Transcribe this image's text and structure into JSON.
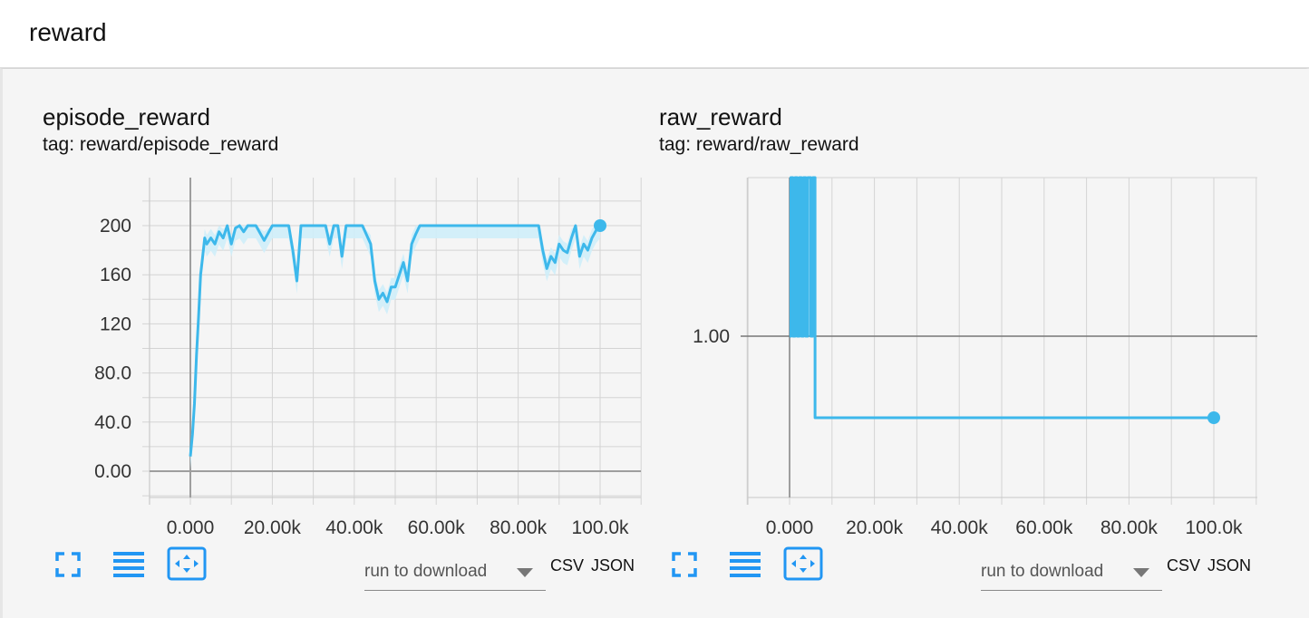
{
  "header": {
    "title": "reward"
  },
  "colors": {
    "series": "#3db8eb",
    "series_light": "#cfeef9",
    "grid": "#d4d4d4",
    "axis": "#9e9e9e",
    "accent": "#2196f3"
  },
  "cards": [
    {
      "title": "episode_reward",
      "tag": "tag: reward/episode_reward",
      "run_select": "run to download",
      "csv_label": "CSV",
      "json_label": "JSON",
      "icons": [
        "fullscreen-icon",
        "data-list-icon",
        "fit-domain-icon"
      ]
    },
    {
      "title": "raw_reward",
      "tag": "tag: reward/raw_reward",
      "run_select": "run to download",
      "csv_label": "CSV",
      "json_label": "JSON",
      "icons": [
        "fullscreen-icon",
        "data-list-icon",
        "fit-domain-icon"
      ]
    }
  ],
  "chart_data": [
    {
      "type": "line",
      "title": "episode_reward",
      "xlim": [
        0,
        100000
      ],
      "ylim": [
        0,
        200
      ],
      "x_ticks": [
        0,
        20000,
        40000,
        60000,
        80000,
        100000
      ],
      "x_tick_labels": [
        "0.000",
        "20.00k",
        "40.00k",
        "60.00k",
        "80.00k",
        "100.0k"
      ],
      "y_ticks": [
        0,
        40,
        80,
        120,
        160,
        200
      ],
      "y_tick_labels": [
        "0.00",
        "40.0",
        "80.0",
        "120",
        "160",
        "200"
      ],
      "grid": true,
      "series": [
        {
          "smoothed": true,
          "x": [
            0,
            500,
            1000,
            1500,
            2000,
            2500,
            3000,
            3500,
            4000,
            5000,
            6000,
            7000,
            8000,
            9000,
            10000,
            11000,
            12000,
            13000,
            14000,
            16000,
            18000,
            20000,
            22000,
            24000,
            25000,
            26000,
            27000,
            30000,
            33000,
            34000,
            35000,
            36000,
            37000,
            38000,
            40000,
            42000,
            44000,
            45000,
            46000,
            47000,
            48000,
            49000,
            50000,
            51000,
            52000,
            53000,
            54000,
            55000,
            56000,
            58000,
            60000,
            62000,
            64000,
            66000,
            68000,
            70000,
            75000,
            80000,
            85000,
            86000,
            87000,
            88000,
            89000,
            90000,
            91000,
            92000,
            93000,
            94000,
            95000,
            96000,
            97000,
            98000,
            99000,
            100000
          ],
          "y": [
            12,
            30,
            55,
            95,
            125,
            160,
            175,
            190,
            185,
            190,
            185,
            195,
            190,
            200,
            185,
            198,
            200,
            195,
            200,
            200,
            188,
            200,
            200,
            200,
            180,
            155,
            200,
            200,
            200,
            185,
            200,
            200,
            175,
            200,
            200,
            200,
            185,
            155,
            140,
            145,
            138,
            150,
            150,
            160,
            170,
            155,
            185,
            193,
            200,
            200,
            200,
            200,
            200,
            200,
            200,
            200,
            200,
            200,
            200,
            180,
            165,
            175,
            170,
            185,
            180,
            178,
            190,
            200,
            175,
            185,
            180,
            190,
            196,
            200
          ]
        }
      ]
    },
    {
      "type": "line",
      "title": "raw_reward",
      "xlim": [
        0,
        100000
      ],
      "x_ticks": [
        0,
        20000,
        40000,
        60000,
        80000,
        100000
      ],
      "x_tick_labels": [
        "0.000",
        "20.00k",
        "40.00k",
        "60.00k",
        "80.00k",
        "100.0k"
      ],
      "y_ticks": [
        1.0
      ],
      "y_tick_labels": [
        "1.00"
      ],
      "ylim": [
        0.0,
        2.0
      ],
      "grid": true,
      "series": [
        {
          "x": [
            0,
            300,
            300,
            800,
            800,
            1300,
            1300,
            1800,
            1800,
            2300,
            2300,
            2800,
            2800,
            3300,
            3300,
            3800,
            3800,
            4300,
            4300,
            5000,
            5000,
            5500,
            5500,
            6000,
            6000,
            100000
          ],
          "y": [
            1.0,
            1.0,
            2.0,
            2.0,
            1.0,
            1.0,
            2.0,
            2.0,
            1.0,
            1.0,
            2.0,
            2.0,
            1.0,
            1.0,
            2.0,
            2.0,
            1.0,
            1.0,
            2.0,
            2.0,
            1.0,
            1.0,
            2.0,
            2.0,
            0.5,
            0.5
          ]
        }
      ]
    }
  ]
}
